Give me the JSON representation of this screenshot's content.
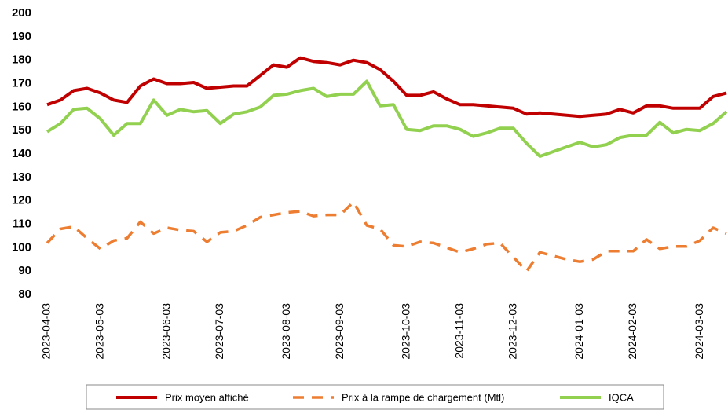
{
  "chart_data": {
    "type": "line",
    "categories": [
      "2023-04-03",
      null,
      null,
      null,
      "2023-05-03",
      null,
      null,
      null,
      null,
      "2023-06-03",
      null,
      null,
      null,
      "2023-07-03",
      null,
      null,
      null,
      null,
      "2023-08-03",
      null,
      null,
      null,
      "2023-09-03",
      null,
      null,
      null,
      null,
      "2023-10-03",
      null,
      null,
      null,
      "2023-11-03",
      null,
      null,
      null,
      "2023-12-03",
      null,
      null,
      null,
      null,
      "2024-01-03",
      null,
      null,
      null,
      "2024-02-03",
      null,
      null,
      null,
      null,
      "2024-03-03",
      null,
      null
    ],
    "series": [
      {
        "name": "Prix moyen affiché",
        "color": "#c00000",
        "style": "solid",
        "values": [
          161,
          163,
          167,
          168,
          166,
          163,
          162,
          169,
          172,
          170,
          170,
          170.5,
          168,
          168.5,
          169,
          169,
          173.5,
          178,
          177,
          181,
          179.5,
          179,
          178,
          180,
          179,
          176,
          171,
          165,
          165,
          166.5,
          163.5,
          161,
          161,
          160.5,
          160,
          159.5,
          157,
          157.5,
          157,
          156.5,
          156,
          156.5,
          157,
          159,
          157.5,
          160.5,
          160.5,
          159.5,
          159.5,
          159.5,
          164.5,
          166
        ]
      },
      {
        "name": "Prix à la rampe de chargement (Mtl)",
        "color": "#ed7d31",
        "style": "dashed",
        "values": [
          102,
          108,
          109,
          104,
          99.5,
          103,
          104,
          111,
          106,
          108.5,
          107.5,
          107,
          102.5,
          106.5,
          107,
          109.5,
          113,
          114,
          115,
          115.5,
          113.5,
          114,
          114,
          119.5,
          109.5,
          108,
          101,
          100.5,
          102.5,
          102,
          100,
          98,
          99.5,
          101.5,
          102,
          96,
          90,
          98,
          96.5,
          95,
          94,
          95,
          98.5,
          98.5,
          98.5,
          103.5,
          99.5,
          100.5,
          100.5,
          103,
          108.5,
          106
        ]
      },
      {
        "name": "IQCA",
        "color": "#92d050",
        "style": "solid",
        "values": [
          149.5,
          153,
          159,
          159.5,
          155,
          148,
          153,
          153,
          163,
          156.5,
          159,
          158,
          158.5,
          153,
          157,
          158,
          160,
          165,
          165.5,
          167,
          168,
          164.5,
          165.5,
          165.5,
          171,
          160.5,
          161,
          150.5,
          150,
          152,
          152,
          150.5,
          147.5,
          149,
          151,
          151,
          144.5,
          139,
          141,
          143,
          145,
          143,
          144,
          147,
          148,
          148,
          153.5,
          149,
          150.5,
          150,
          153,
          158
        ]
      }
    ],
    "ylim": [
      80,
      200
    ],
    "yticks": [
      80,
      90,
      100,
      110,
      120,
      130,
      140,
      150,
      160,
      170,
      180,
      190,
      200
    ],
    "grid": false,
    "legend": "bottom"
  }
}
